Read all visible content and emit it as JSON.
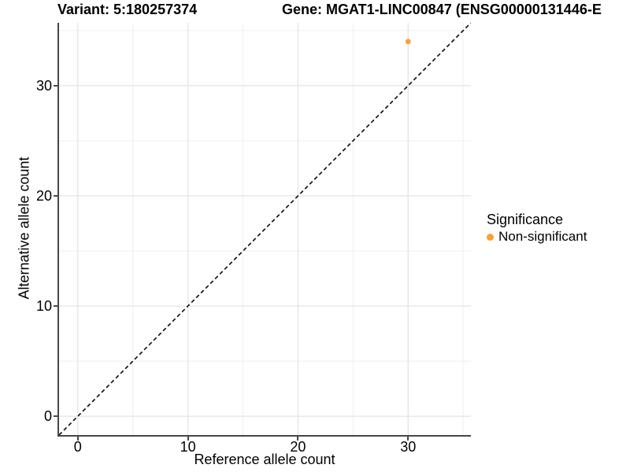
{
  "figure": {
    "variant_title": "Variant: 5:180257374",
    "gene_title": "Gene: MGAT1-LINC00847 (ENSG00000131446-E"
  },
  "chart_data": {
    "type": "scatter",
    "title": "Variant: 5:180257374",
    "title_right": "Gene: MGAT1-LINC00847 (ENSG00000131446-E",
    "xlabel": "Reference allele count",
    "ylabel": "Alternative allele count",
    "xlim": [
      -1.7,
      35.7
    ],
    "ylim": [
      -1.7,
      35.7
    ],
    "x_ticks": [
      0,
      10,
      20,
      30
    ],
    "y_ticks": [
      0,
      10,
      20,
      30
    ],
    "x_minor_ticks": [
      5,
      15,
      25,
      35
    ],
    "y_minor_ticks": [
      5,
      15,
      25,
      35
    ],
    "grid": "major+minor on white",
    "points": [
      {
        "x": 30,
        "y": 34,
        "series": "Non-significant"
      }
    ],
    "reference_line": {
      "kind": "identity",
      "equation": "y = x",
      "style": "dashed"
    },
    "legend": {
      "title": "Significance",
      "position": "right",
      "entries": [
        {
          "label": "Non-significant",
          "color": "#F9A134"
        }
      ]
    },
    "colors": {
      "point": "#F9A134",
      "grid_major": "#e6e6e6",
      "grid_minor": "#f2f2f2",
      "axis": "#474747",
      "reference_line": "#151515",
      "text": "#000000",
      "background": "#ffffff"
    }
  }
}
